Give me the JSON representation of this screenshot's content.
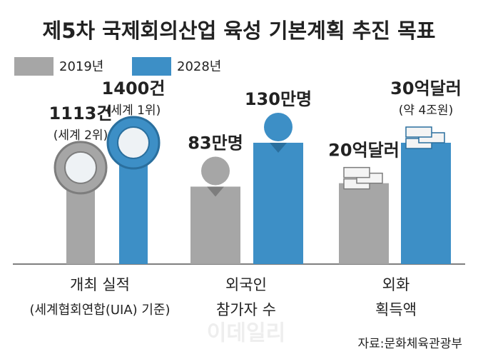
{
  "chart_data": {
    "type": "bar",
    "title": "제5차 국제회의산업 육성 기본계획 추진 목표",
    "categories": [
      [
        "개최 실적",
        "(세계협회연합(UIA) 기준)"
      ],
      [
        "외국인",
        "참가자 수"
      ],
      [
        "외화",
        "획득액"
      ]
    ],
    "series": [
      {
        "name": "2019년",
        "color": "#a6a6a6",
        "values": [
          1113,
          83,
          20
        ],
        "value_labels": [
          "1113건",
          "83만명",
          "20억달러"
        ],
        "notes": [
          "(세계 2위)",
          null,
          null
        ]
      },
      {
        "name": "2028년",
        "color": "#3d8fc6",
        "values": [
          1400,
          130,
          30
        ],
        "value_labels": [
          "1400건",
          "130만명",
          "30억달러"
        ],
        "notes": [
          "(세계 1위)",
          null,
          "(약 4조원)"
        ]
      }
    ],
    "source": "자료:문화체육관광부",
    "watermark": "이데일리"
  }
}
